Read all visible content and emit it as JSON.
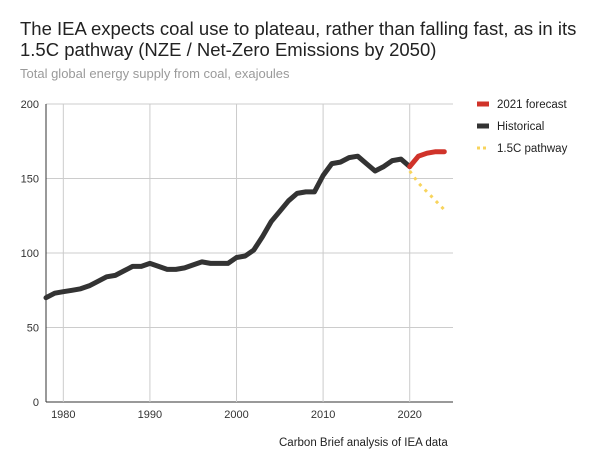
{
  "chart_data": {
    "type": "line",
    "title": "The IEA expects coal use to plateau, rather than falling fast, as in its 1.5C pathway (NZE / Net-Zero Emissions by 2050)",
    "subtitle": "Total global energy supply from coal, exajoules",
    "source": "Carbon Brief analysis of IEA data",
    "xlabel": "",
    "ylabel": "",
    "xlim": [
      1978,
      2025
    ],
    "ylim": [
      0,
      200
    ],
    "xticks": [
      1980,
      1990,
      2000,
      2010,
      2020
    ],
    "yticks": [
      0,
      50,
      100,
      150,
      200
    ],
    "grid": true,
    "legend_position": "top-right",
    "series": [
      {
        "name": "2021 forecast",
        "color": "#d0332a",
        "style": "solid",
        "x": [
          2020,
          2021,
          2022,
          2023,
          2024
        ],
        "y": [
          158,
          165,
          167,
          168,
          168
        ]
      },
      {
        "name": "Historical",
        "color": "#333333",
        "style": "solid",
        "x": [
          1978,
          1979,
          1980,
          1981,
          1982,
          1983,
          1984,
          1985,
          1986,
          1987,
          1988,
          1989,
          1990,
          1991,
          1992,
          1993,
          1994,
          1995,
          1996,
          1997,
          1998,
          1999,
          2000,
          2001,
          2002,
          2003,
          2004,
          2005,
          2006,
          2007,
          2008,
          2009,
          2010,
          2011,
          2012,
          2013,
          2014,
          2015,
          2016,
          2017,
          2018,
          2019,
          2020
        ],
        "y": [
          70,
          73,
          74,
          75,
          76,
          78,
          81,
          84,
          85,
          88,
          91,
          91,
          93,
          91,
          89,
          89,
          90,
          92,
          94,
          93,
          93,
          93,
          97,
          98,
          102,
          111,
          121,
          128,
          135,
          140,
          141,
          141,
          152,
          160,
          161,
          164,
          165,
          160,
          155,
          158,
          162,
          163,
          158
        ]
      },
      {
        "name": "1.5C pathway",
        "color": "#f8d45c",
        "style": "dotted",
        "x": [
          2020,
          2021,
          2022,
          2023,
          2024
        ],
        "y": [
          155,
          147,
          141,
          135,
          129
        ]
      }
    ]
  }
}
